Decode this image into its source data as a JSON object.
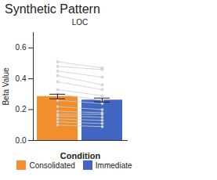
{
  "chart_data": {
    "type": "bar",
    "title": "Synthetic Pattern",
    "subtitle": "LOC",
    "x_label": "Condition",
    "y_label": "Beta Value",
    "categories": [
      "Consolidated",
      "Immediate"
    ],
    "values": [
      0.285,
      0.262
    ],
    "errors": [
      0.015,
      0.013
    ],
    "colors": [
      "#f28e2b",
      "#4167c2"
    ],
    "subject_values": [
      [
        0.51,
        0.47
      ],
      [
        0.48,
        0.46
      ],
      [
        0.45,
        0.41
      ],
      [
        0.42,
        0.36
      ],
      [
        0.38,
        0.33
      ],
      [
        0.33,
        0.29
      ],
      [
        0.3,
        0.26
      ],
      [
        0.26,
        0.24
      ],
      [
        0.22,
        0.2
      ],
      [
        0.19,
        0.18
      ],
      [
        0.17,
        0.17
      ],
      [
        0.16,
        0.15
      ],
      [
        0.14,
        0.13
      ],
      [
        0.12,
        0.11
      ],
      [
        0.1,
        0.09
      ]
    ],
    "ylim": [
      0,
      0.7
    ],
    "yticks": [
      {
        "value": 0,
        "label": "0.0"
      },
      {
        "value": 0.2,
        "label": "0.2"
      },
      {
        "value": 0.4,
        "label": "0.4"
      },
      {
        "value": 0.6,
        "label": "0.6"
      }
    ],
    "grid": false,
    "legend": "bottom",
    "tick_labels": "y"
  }
}
